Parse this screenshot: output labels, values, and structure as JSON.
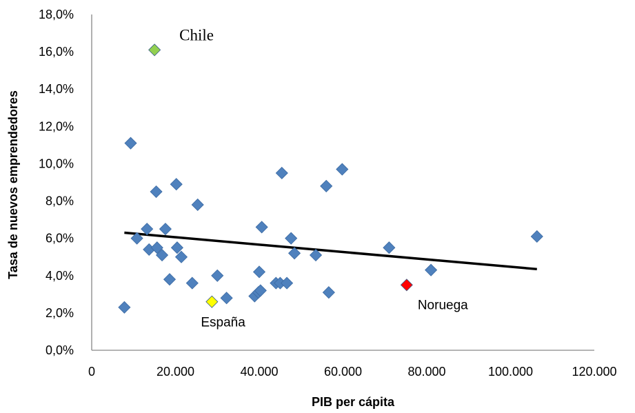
{
  "chart_data": {
    "type": "scatter",
    "xlabel": "PIB per cápita",
    "ylabel": "Tasa de nuevos emprendedores",
    "xlim": [
      0,
      120000
    ],
    "ylim": [
      0,
      18
    ],
    "x_ticks": [
      0,
      20000,
      40000,
      60000,
      80000,
      100000,
      120000
    ],
    "x_tick_labels": [
      "0",
      "20.000",
      "40.000",
      "60.000",
      "80.000",
      "100.000",
      "120.000"
    ],
    "y_ticks": [
      0,
      2,
      4,
      6,
      8,
      10,
      12,
      14,
      16,
      18
    ],
    "y_tick_labels": [
      "0,0%",
      "2,0%",
      "4,0%",
      "6,0%",
      "8,0%",
      "10,0%",
      "12,0%",
      "14,0%",
      "16,0%",
      "18,0%"
    ],
    "grid": false,
    "marker_color": "#4f81bd",
    "points": [
      {
        "x": 7800,
        "y": 2.3
      },
      {
        "x": 9300,
        "y": 11.1
      },
      {
        "x": 10800,
        "y": 6.0
      },
      {
        "x": 13200,
        "y": 6.5
      },
      {
        "x": 13700,
        "y": 5.4
      },
      {
        "x": 15400,
        "y": 8.5
      },
      {
        "x": 15600,
        "y": 5.5
      },
      {
        "x": 16800,
        "y": 5.1
      },
      {
        "x": 17600,
        "y": 6.5
      },
      {
        "x": 18600,
        "y": 3.8
      },
      {
        "x": 20200,
        "y": 8.9
      },
      {
        "x": 20400,
        "y": 5.5
      },
      {
        "x": 21400,
        "y": 5.0
      },
      {
        "x": 24000,
        "y": 3.6
      },
      {
        "x": 25300,
        "y": 7.8
      },
      {
        "x": 30000,
        "y": 4.0
      },
      {
        "x": 32200,
        "y": 2.8
      },
      {
        "x": 38900,
        "y": 2.9
      },
      {
        "x": 39800,
        "y": 3.1
      },
      {
        "x": 40000,
        "y": 4.2
      },
      {
        "x": 40300,
        "y": 3.2
      },
      {
        "x": 40600,
        "y": 6.6
      },
      {
        "x": 44000,
        "y": 3.6
      },
      {
        "x": 45000,
        "y": 3.6
      },
      {
        "x": 45400,
        "y": 9.5
      },
      {
        "x": 46600,
        "y": 3.6
      },
      {
        "x": 47600,
        "y": 6.0
      },
      {
        "x": 48400,
        "y": 5.2
      },
      {
        "x": 53500,
        "y": 5.1
      },
      {
        "x": 56000,
        "y": 8.8
      },
      {
        "x": 56600,
        "y": 3.1
      },
      {
        "x": 59800,
        "y": 9.7
      },
      {
        "x": 71000,
        "y": 5.5
      },
      {
        "x": 81000,
        "y": 4.3
      },
      {
        "x": 106300,
        "y": 6.1
      },
      {
        "x": 15000,
        "y": 16.1,
        "label": "Chile",
        "color": "#92d050"
      },
      {
        "x": 28700,
        "y": 2.6,
        "label": "España",
        "color": "#ffff00"
      },
      {
        "x": 75200,
        "y": 3.5,
        "label": "Noruega",
        "color": "#ff0000"
      }
    ],
    "trendline": {
      "x": [
        7800,
        106300
      ],
      "y": [
        6.3,
        4.35
      ],
      "color": "#000000"
    },
    "annotations": [
      "Chile",
      "España",
      "Noruega"
    ]
  }
}
